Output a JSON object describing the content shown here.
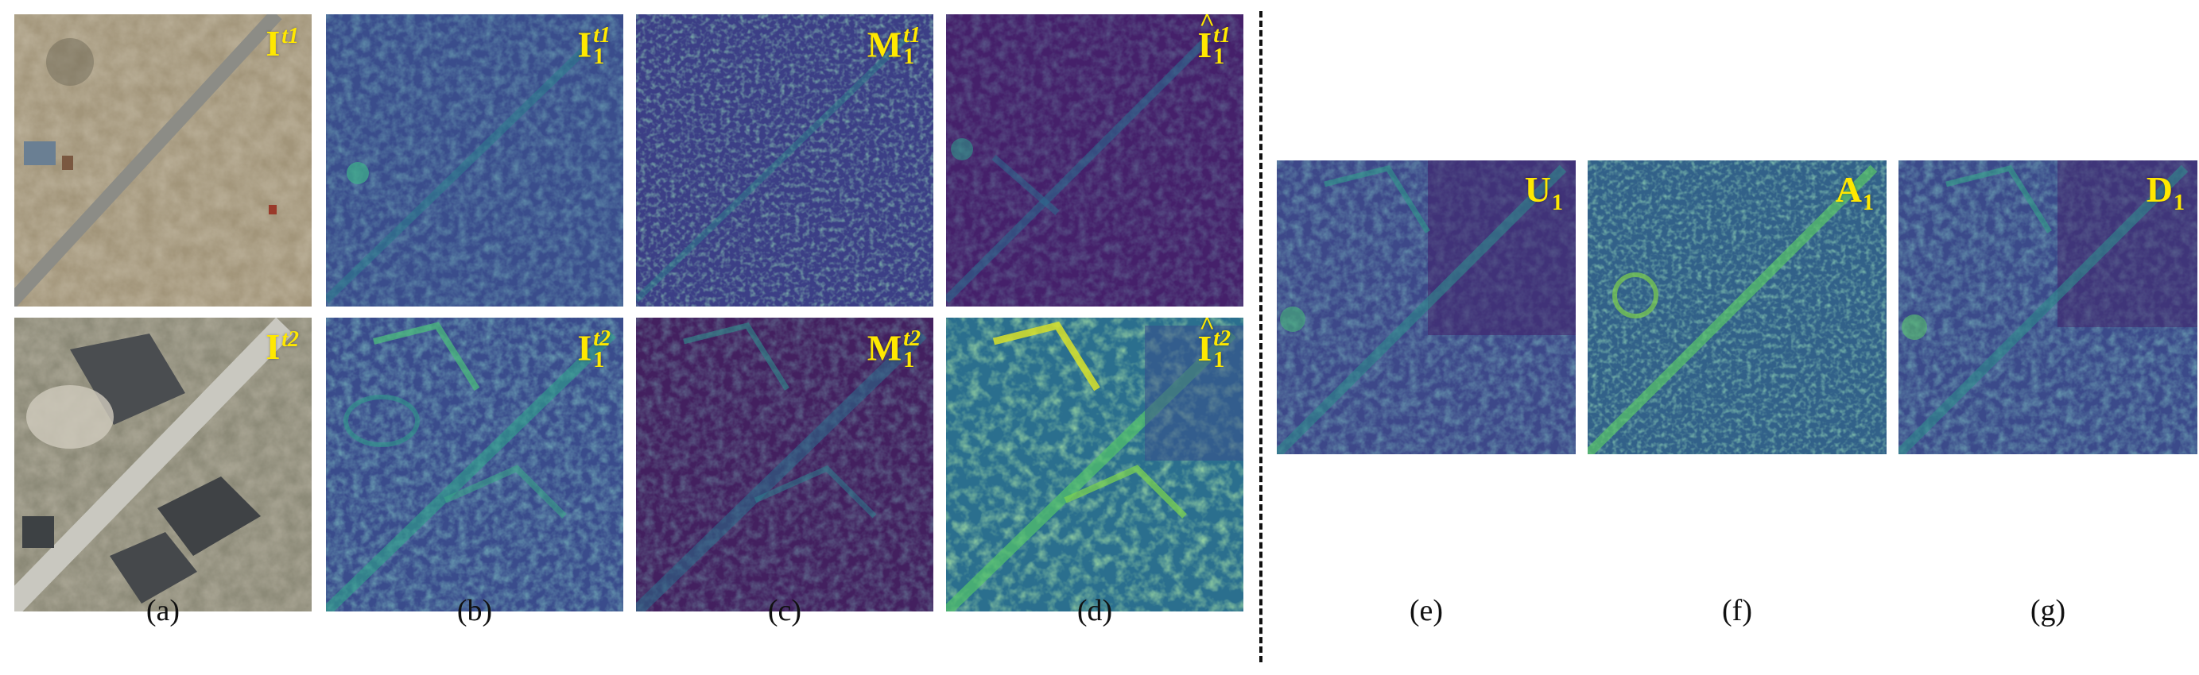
{
  "figure": {
    "panels": [
      {
        "key": "a_top",
        "sym": "I",
        "sup": "t1",
        "sub": "",
        "hat": false,
        "kind": "aerial"
      },
      {
        "key": "a_bot",
        "sym": "I",
        "sup": "t2",
        "sub": "",
        "hat": false,
        "kind": "aerial"
      },
      {
        "key": "b_top",
        "sym": "I",
        "sup": "t1",
        "sub": "1",
        "hat": false,
        "kind": "feature"
      },
      {
        "key": "b_bot",
        "sym": "I",
        "sup": "t2",
        "sub": "1",
        "hat": false,
        "kind": "feature"
      },
      {
        "key": "c_top",
        "sym": "M",
        "sup": "t1",
        "sub": "1",
        "hat": false,
        "kind": "feature"
      },
      {
        "key": "c_bot",
        "sym": "M",
        "sup": "t2",
        "sub": "1",
        "hat": false,
        "kind": "feature"
      },
      {
        "key": "d_top",
        "sym": "I",
        "sup": "t1",
        "sub": "1",
        "hat": true,
        "kind": "feature"
      },
      {
        "key": "d_bot",
        "sym": "I",
        "sup": "t2",
        "sub": "1",
        "hat": true,
        "kind": "feature"
      },
      {
        "key": "e",
        "sym": "U",
        "sup": "",
        "sub": "1",
        "hat": false,
        "kind": "feature"
      },
      {
        "key": "f",
        "sym": "A",
        "sup": "",
        "sub": "1",
        "hat": false,
        "kind": "feature"
      },
      {
        "key": "g",
        "sym": "D",
        "sup": "",
        "sub": "1",
        "hat": false,
        "kind": "feature"
      }
    ],
    "captions": {
      "a": "(a)",
      "b": "(b)",
      "c": "(c)",
      "d": "(d)",
      "e": "(e)",
      "f": "(f)",
      "g": "(g)"
    },
    "colormap": [
      "#440154",
      "#3b528b",
      "#21918c",
      "#5ec962",
      "#fde725"
    ],
    "label_color": "#ffe800"
  }
}
